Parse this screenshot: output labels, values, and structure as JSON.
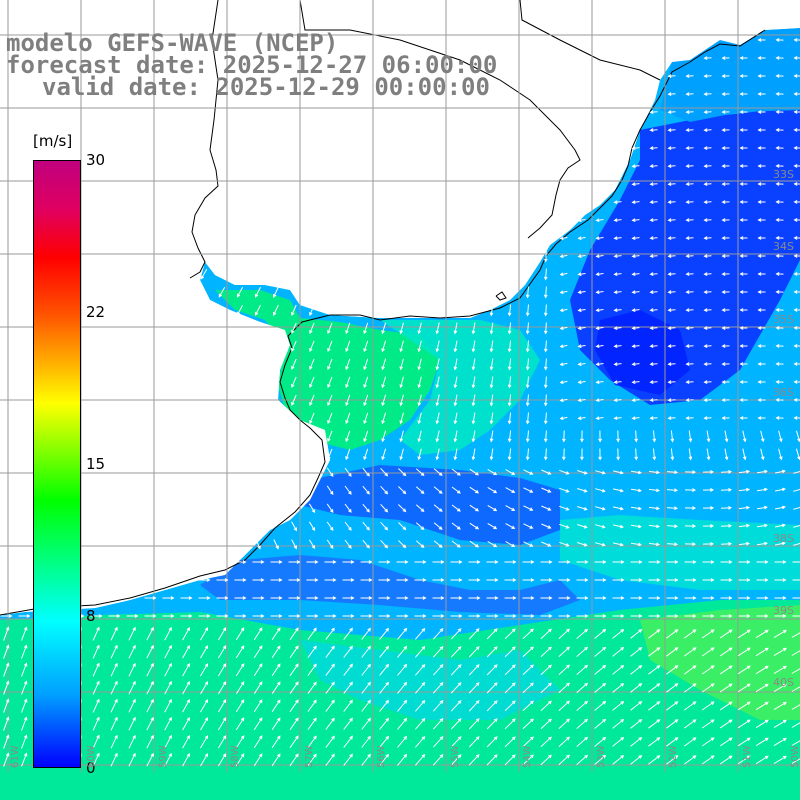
{
  "header": {
    "line1": "modelo GEFS-WAVE (NCEP)",
    "line2": "forecast date: 2025-12-27 06:00:00",
    "line3": "valid date: 2025-12-29 00:00:00"
  },
  "colorbar": {
    "unit": "[m/s]",
    "ticks": [
      "30",
      "22",
      "15",
      "8",
      "0"
    ]
  },
  "lat_labels": [
    "33S",
    "34S",
    "35S",
    "36S",
    "38S",
    "39S",
    "40S"
  ],
  "lon_labels": [
    "61W",
    "60W",
    "59W",
    "58W",
    "57W",
    "56W",
    "55W",
    "54W",
    "53W",
    "52W",
    "51W",
    "50W"
  ],
  "colors": {
    "land": "#ffffff",
    "grid": "#9a9a9a",
    "arrow": "#ffffff",
    "coast": "#000000",
    "title": "#7f7f7f"
  }
}
